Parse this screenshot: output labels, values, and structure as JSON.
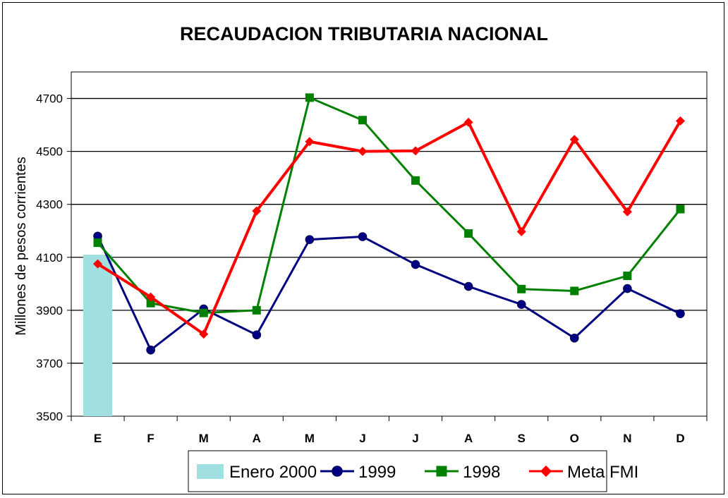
{
  "chart_data": {
    "type": "line",
    "title": "RECAUDACION TRIBUTARIA NACIONAL",
    "ylabel": "Millones de pesos corrientes",
    "xlabel": "",
    "ylim": [
      3500,
      4800
    ],
    "yticks": [
      3500,
      3700,
      3900,
      4100,
      4300,
      4500,
      4700
    ],
    "gridlines": [
      3700,
      3900,
      4100,
      4300,
      4500,
      4700
    ],
    "grid": true,
    "legend_position": "bottom",
    "categories": [
      "E",
      "F",
      "M",
      "A",
      "M",
      "J",
      "J",
      "A",
      "S",
      "O",
      "N",
      "D"
    ],
    "bars": [
      {
        "name": "Enero 2000",
        "color": "#a0e0e0",
        "values": [
          4110
        ]
      }
    ],
    "series": [
      {
        "name": "1999",
        "color": "#000080",
        "marker": "circle",
        "values": [
          4180,
          3750,
          3905,
          3807,
          4167,
          4178,
          4073,
          3990,
          3922,
          3795,
          3982,
          3887
        ]
      },
      {
        "name": "1998",
        "color": "#008000",
        "marker": "square",
        "values": [
          4155,
          3927,
          3890,
          3900,
          4703,
          4618,
          4390,
          4190,
          3980,
          3973,
          4030,
          4282
        ]
      },
      {
        "name": "Meta FMI",
        "color": "#ff0000",
        "marker": "diamond",
        "values": [
          4075,
          3950,
          3810,
          4275,
          4537,
          4500,
          4502,
          4610,
          4197,
          4545,
          4272,
          4615
        ]
      }
    ]
  }
}
